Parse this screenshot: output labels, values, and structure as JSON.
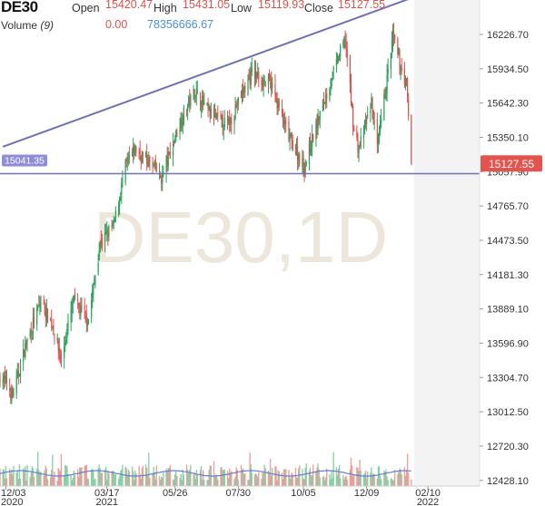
{
  "header": {
    "symbol": "DE30",
    "open_label": "Open",
    "open_value": "15420.47",
    "high_label": "High",
    "high_value": "15431.05",
    "low_label": "Low",
    "low_value": "15119.93",
    "close_label": "Close",
    "close_value": "15127.55",
    "volume_label": "Volume",
    "volume_period": "(9)",
    "volume_value": "0.00",
    "volume_ma_value": "78356666.67"
  },
  "watermark": "DE30,1D",
  "price_labels": {
    "last_price": "15127.55",
    "horizontal_line": "15041.35"
  },
  "colors": {
    "up": "#2ca05a",
    "down": "#d9534f",
    "trendline": "#7070b8",
    "last_price_bg": "#e5534f",
    "hline_label_bg": "#8e8ed8",
    "value_red": "#d9534f",
    "value_blue": "#4a90d9",
    "volume_ma": "#5b7fcf"
  },
  "chart_data": {
    "type": "candlestick",
    "y_ticks": [
      "16226.70",
      "15934.50",
      "15642.30",
      "15350.10",
      "15057.90",
      "14765.70",
      "14473.50",
      "14181.30",
      "13889.10",
      "13596.90",
      "13304.70",
      "13012.50",
      "12720.30",
      "12428.10"
    ],
    "x_ticks": [
      {
        "date": "2020-12-03",
        "label": "12/03",
        "sub": "2020"
      },
      {
        "date": "2021-03-17",
        "label": "03/17",
        "sub": "2021"
      },
      {
        "date": "2021-05-26",
        "label": "05/26",
        "sub": ""
      },
      {
        "date": "2021-07-30",
        "label": "07/30",
        "sub": ""
      },
      {
        "date": "2021-10-05",
        "label": "10/05",
        "sub": ""
      },
      {
        "date": "2021-12-09",
        "label": "12/09",
        "sub": ""
      },
      {
        "date": "2022-02-10",
        "label": "02/10",
        "sub": "2022"
      }
    ],
    "ylim": [
      12380,
      16520
    ],
    "horizontal_line": 15041.35,
    "trendline": {
      "start": {
        "date": "2020-11-30",
        "value": 15270
      },
      "end": {
        "date": "2022-01-25",
        "value": 16540
      }
    },
    "close_path": [
      {
        "date": "2020-11-30",
        "value": 13300
      },
      {
        "date": "2020-12-10",
        "value": 13150
      },
      {
        "date": "2020-12-24",
        "value": 13600
      },
      {
        "date": "2021-01-08",
        "value": 13950
      },
      {
        "date": "2021-01-20",
        "value": 13750
      },
      {
        "date": "2021-01-29",
        "value": 13450
      },
      {
        "date": "2021-02-10",
        "value": 13950
      },
      {
        "date": "2021-02-26",
        "value": 13800
      },
      {
        "date": "2021-03-10",
        "value": 14450
      },
      {
        "date": "2021-03-24",
        "value": 14600
      },
      {
        "date": "2021-04-05",
        "value": 15100
      },
      {
        "date": "2021-04-15",
        "value": 15250
      },
      {
        "date": "2021-05-04",
        "value": 15100
      },
      {
        "date": "2021-05-12",
        "value": 15000
      },
      {
        "date": "2021-06-01",
        "value": 15500
      },
      {
        "date": "2021-06-15",
        "value": 15750
      },
      {
        "date": "2021-07-01",
        "value": 15550
      },
      {
        "date": "2021-07-19",
        "value": 15450
      },
      {
        "date": "2021-08-13",
        "value": 15900
      },
      {
        "date": "2021-09-02",
        "value": 15800
      },
      {
        "date": "2021-09-20",
        "value": 15350
      },
      {
        "date": "2021-10-06",
        "value": 15100
      },
      {
        "date": "2021-10-22",
        "value": 15550
      },
      {
        "date": "2021-11-17",
        "value": 16200
      },
      {
        "date": "2021-11-26",
        "value": 15400
      },
      {
        "date": "2021-12-01",
        "value": 15250
      },
      {
        "date": "2021-12-14",
        "value": 15650
      },
      {
        "date": "2021-12-20",
        "value": 15250
      },
      {
        "date": "2022-01-05",
        "value": 16200
      },
      {
        "date": "2022-01-13",
        "value": 15950
      },
      {
        "date": "2022-01-19",
        "value": 15800
      },
      {
        "date": "2022-01-24",
        "value": 15130
      }
    ],
    "grid": false
  }
}
